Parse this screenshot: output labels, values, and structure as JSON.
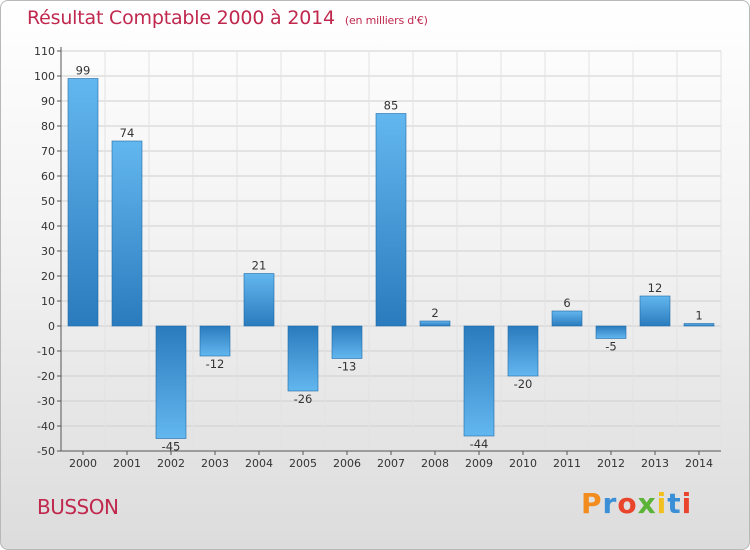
{
  "header": {
    "title": "Résultat Comptable 2000 à 2014",
    "subtitle": "(en milliers d'€)"
  },
  "footer": {
    "commune": "BUSSON",
    "logo": "Proxiti"
  },
  "colors": {
    "title": "#c0284e",
    "bar_dark": "#2a7bbd",
    "bar_light": "#63b7ef",
    "logo_letters": [
      "#f28c1e",
      "#3a8fd6",
      "#e8452c",
      "#5bb337",
      "#f2c01e",
      "#3a8fd6",
      "#e8452c"
    ]
  },
  "chart_data": {
    "type": "bar",
    "title": "Résultat Comptable 2000 à 2014",
    "subtitle": "(en milliers d'€)",
    "categories": [
      "2000",
      "2001",
      "2002",
      "2003",
      "2004",
      "2005",
      "2006",
      "2007",
      "2008",
      "2009",
      "2010",
      "2011",
      "2012",
      "2013",
      "2014"
    ],
    "values": [
      99,
      74,
      -45,
      -12,
      21,
      -26,
      -13,
      85,
      2,
      -44,
      -20,
      6,
      -5,
      12,
      1
    ],
    "ylim": [
      -50,
      110
    ],
    "yticks": [
      -50,
      -40,
      -30,
      -20,
      -10,
      0,
      10,
      20,
      30,
      40,
      50,
      60,
      70,
      80,
      90,
      100,
      110
    ],
    "grid": true,
    "legend": "none"
  }
}
